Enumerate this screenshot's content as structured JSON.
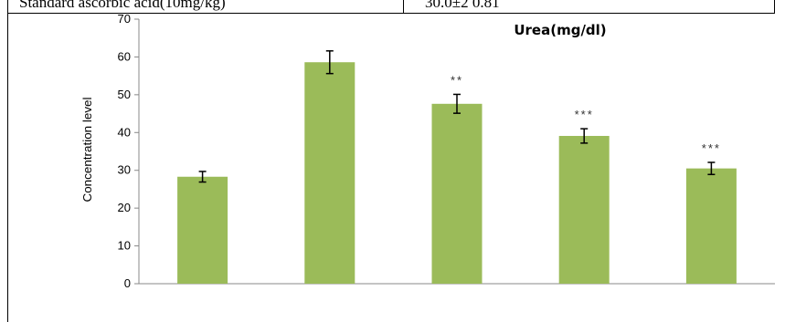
{
  "header_row": {
    "left_text": "Standard ascorbic acid(10mg/kg)",
    "right_text": "30.0±2 0.81"
  },
  "chart_data": {
    "type": "bar",
    "title": "Urea(mg/dl)",
    "xlabel": "",
    "ylabel": "Concentration level",
    "ylim": [
      0,
      70
    ],
    "yticks": [
      0,
      10,
      20,
      30,
      40,
      50,
      60,
      70
    ],
    "categories": [
      "",
      "",
      "",
      "",
      ""
    ],
    "values": [
      28.3,
      58.6,
      47.6,
      39.1,
      30.5
    ],
    "errors": [
      1.4,
      3.0,
      2.5,
      1.9,
      1.6
    ],
    "annotations": [
      "",
      "",
      "**",
      "***",
      "***"
    ],
    "grid": false,
    "bar_color": "#9bbb59"
  }
}
